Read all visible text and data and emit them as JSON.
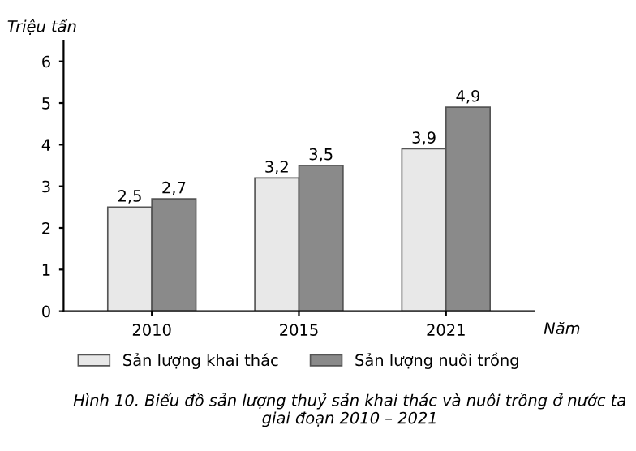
{
  "chart_data": {
    "type": "bar",
    "ylabel": "Triệu tấn",
    "xlabel": "Năm",
    "categories": [
      "2010",
      "2015",
      "2021"
    ],
    "series": [
      {
        "name": "Sản lượng khai thác",
        "color": "#e8e8e8",
        "values": [
          2.5,
          3.2,
          3.9
        ],
        "value_labels": [
          "2,5",
          "3,2",
          "3,9"
        ]
      },
      {
        "name": "Sản lượng nuôi trồng",
        "color": "#8a8a8a",
        "values": [
          2.7,
          3.5,
          4.9
        ],
        "value_labels": [
          "2,7",
          "3,5",
          "4,9"
        ]
      }
    ],
    "ylim": [
      0,
      6.5
    ],
    "yticks": [
      0,
      1,
      2,
      3,
      4,
      5,
      6
    ],
    "grid": false,
    "legend": "bottom",
    "annotations": [
      "Hình 10. Biểu đồ sản lượng thuỷ sản khai thác và nuôi trồng ở nước ta giai đoạn 2010 – 2021"
    ]
  }
}
